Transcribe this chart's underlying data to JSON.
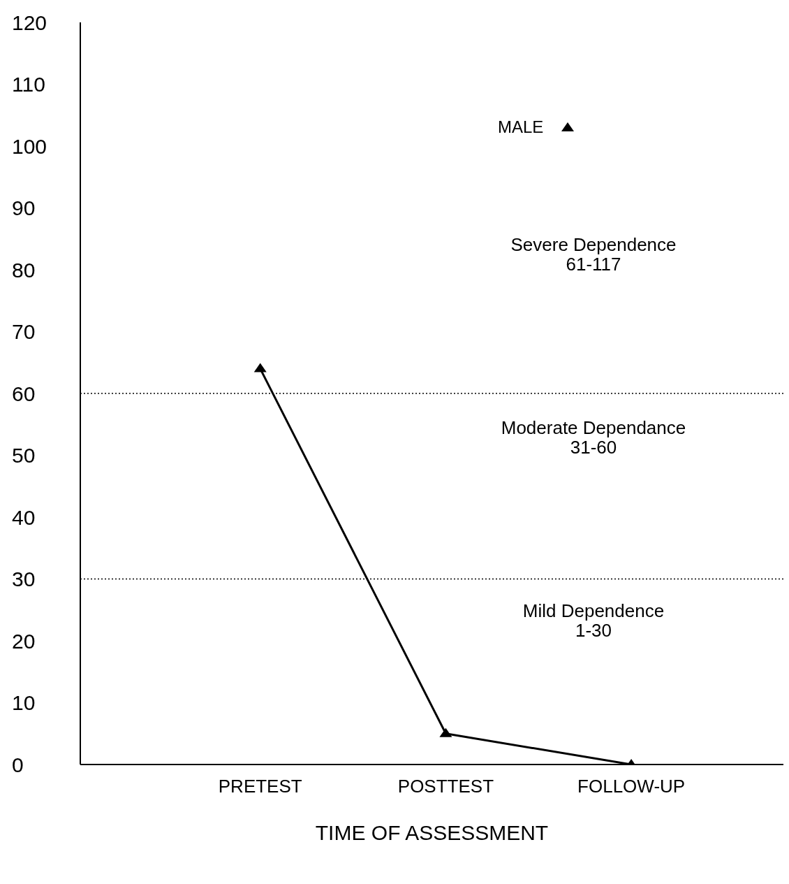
{
  "chart_data": {
    "type": "line",
    "xlabel": "TIME OF ASSESSMENT",
    "categories": [
      "PRETEST",
      "POSTTEST",
      "FOLLOW-UP"
    ],
    "series": [
      {
        "name": "MALE",
        "color": "#000000",
        "values": [
          64,
          5,
          0
        ]
      }
    ],
    "ylim": [
      0,
      120
    ],
    "yticks": [
      0,
      10,
      20,
      30,
      40,
      50,
      60,
      70,
      80,
      90,
      100,
      110,
      120
    ],
    "ref_lines": [
      {
        "axis": "y",
        "value": 60,
        "line_style": "dotted",
        "color": "#000000"
      },
      {
        "axis": "y",
        "value": 30,
        "line_style": "dotted",
        "color": "#000000"
      }
    ],
    "annotations": [
      "Severe Dependence\n61-117",
      "Moderate Dependance\n31-60",
      "Mild Dependence\n1-30"
    ],
    "marker": "triangle",
    "line_style": "solid",
    "legend": "top right",
    "grid": false
  }
}
